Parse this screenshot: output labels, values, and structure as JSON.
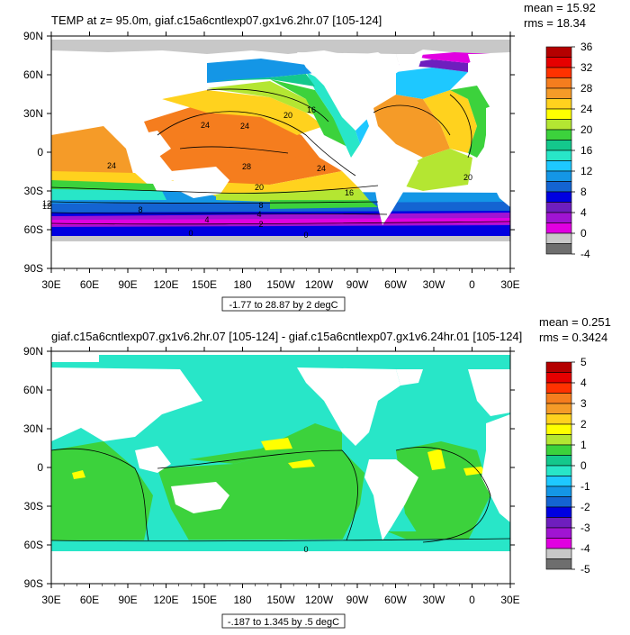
{
  "panel1": {
    "title": "TEMP at z=  95.0m, giaf.c15a6cntlexp07.gx1v6.2hr.07 [105-124]",
    "mean": "mean = 15.92",
    "rms": "rms = 18.34",
    "contour_info": "-1.77 to 28.87 by 2 degC",
    "lat_labels": [
      "90N",
      "60N",
      "30N",
      "0",
      "30S",
      "60S",
      "90S"
    ],
    "lon_labels": [
      "30E",
      "60E",
      "90E",
      "120E",
      "150E",
      "180",
      "150W",
      "120W",
      "90W",
      "60W",
      "30W",
      "0",
      "30E"
    ],
    "colorbar_labels": [
      "36",
      "32",
      "28",
      "24",
      "20",
      "16",
      "12",
      "8",
      "4",
      "0",
      "-4"
    ],
    "colorbar_colors": [
      "#b40000",
      "#e60000",
      "#ff3200",
      "#f57d1e",
      "#f59b28",
      "#ffd21e",
      "#ffff00",
      "#b4e632",
      "#3cd23c",
      "#14c88c",
      "#28e6c8",
      "#1ec8ff",
      "#1496e6",
      "#1464d2",
      "#0000e1",
      "#6e1ebe",
      "#a014d2",
      "#e100e1",
      "#c8c8c8",
      "#6e6e6e"
    ],
    "contour_labels": [
      "24",
      "28",
      "24",
      "20",
      "20",
      "16",
      "24",
      "24",
      "16",
      "12",
      "8",
      "4",
      "0",
      "8",
      "4",
      "2",
      "0",
      "12",
      "20"
    ]
  },
  "panel2": {
    "title": "giaf.c15a6cntlexp07.gx1v6.2hr.07 [105-124] - giaf.c15a6cntlexp07.gx1v6.24hr.01 [105-124]",
    "mean": "mean = 0.251",
    "rms": "rms = 0.3424",
    "contour_info": "-.187 to 1.345 by .5 degC",
    "lat_labels": [
      "90N",
      "60N",
      "30N",
      "0",
      "30S",
      "60S",
      "90S"
    ],
    "lon_labels": [
      "30E",
      "60E",
      "90E",
      "120E",
      "150E",
      "180",
      "150W",
      "120W",
      "90W",
      "60W",
      "30W",
      "0",
      "30E"
    ],
    "colorbar_labels": [
      "5",
      "4",
      "3",
      "2",
      "1",
      "0",
      "-1",
      "-2",
      "-3",
      "-4",
      "-5"
    ],
    "colorbar_colors": [
      "#b40000",
      "#e60000",
      "#ff3200",
      "#f57d1e",
      "#f59b28",
      "#ffd21e",
      "#ffff00",
      "#b4e632",
      "#3cd23c",
      "#14c88c",
      "#28e6c8",
      "#1ec8ff",
      "#1496e6",
      "#1464d2",
      "#0000e1",
      "#6e1ebe",
      "#a014d2",
      "#e100e1",
      "#c8c8c8",
      "#6e6e6e"
    ],
    "contour_labels": [
      "0"
    ]
  }
}
